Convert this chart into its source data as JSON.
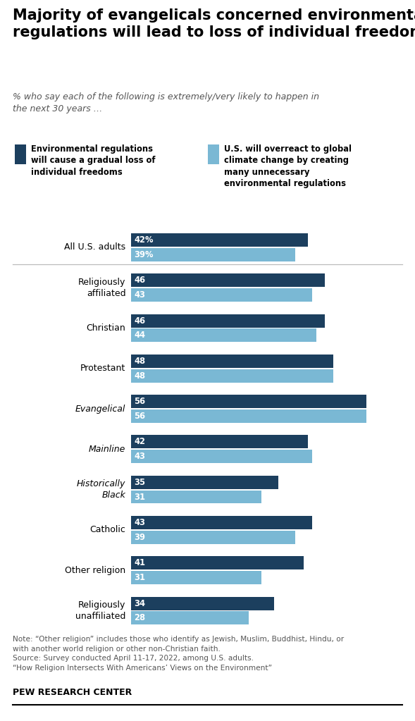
{
  "title": "Majority of evangelicals concerned environmental\nregulations will lead to loss of individual freedoms",
  "subtitle": "% who say each of the following is extremely/very likely to happen in\nthe next 30 years …",
  "legend1_label": "Environmental regulations\nwill cause a gradual loss of\nindividual freedoms",
  "legend2_label": "U.S. will overreact to global\nclimate change by creating\nmany unnecessary\nenvironmental regulations",
  "color_dark": "#1c3f5e",
  "color_light": "#7ab8d4",
  "categories": [
    "All U.S. adults",
    "Religiously\naffiliated",
    "Christian",
    "Protestant",
    "Evangelical",
    "Mainline",
    "Historically\nBlack",
    "Catholic",
    "Other religion",
    "Religiously\nunaffiliated"
  ],
  "italic_categories": [
    "Evangelical",
    "Mainline",
    "Historically"
  ],
  "values_dark": [
    42,
    46,
    46,
    48,
    56,
    42,
    35,
    43,
    41,
    34
  ],
  "values_light": [
    39,
    43,
    44,
    48,
    56,
    43,
    31,
    39,
    31,
    28
  ],
  "show_pct_sign": [
    true,
    false,
    false,
    false,
    false,
    false,
    false,
    false,
    false,
    false
  ],
  "xlim": [
    0,
    65
  ],
  "note": "Note: “Other religion” includes those who identify as Jewish, Muslim, Buddhist, Hindu, or\nwith another world religion or other non-Christian faith.\nSource: Survey conducted April 11-17, 2022, among U.S. adults.\n“How Religion Intersects With Americans’ Views on the Environment”",
  "source_bold": "PEW RESEARCH CENTER",
  "separator_after_idx": 0,
  "fig_width": 5.89,
  "fig_height": 10.23,
  "dpi": 100
}
